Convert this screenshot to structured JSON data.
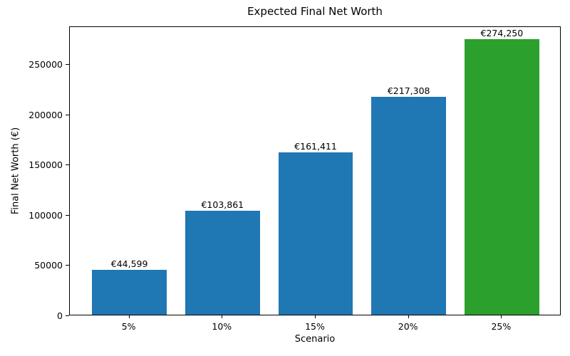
{
  "chart_data": {
    "type": "bar",
    "title": "Expected Final Net Worth",
    "xlabel": "Scenario",
    "ylabel": "Final Net Worth (€)",
    "categories": [
      "5%",
      "10%",
      "15%",
      "20%",
      "25%"
    ],
    "values": [
      44599,
      103861,
      161411,
      217308,
      274250
    ],
    "bar_labels": [
      "€44,599",
      "€103,861",
      "€161,411",
      "€217,308",
      "€274,250"
    ],
    "bar_colors": [
      "#1f77b4",
      "#1f77b4",
      "#1f77b4",
      "#1f77b4",
      "#2ca02c"
    ],
    "yticks": [
      0,
      50000,
      100000,
      150000,
      200000,
      250000
    ],
    "ytick_labels": [
      "0",
      "50000",
      "100000",
      "150000",
      "200000",
      "250000"
    ],
    "ylim": [
      0,
      288000
    ],
    "grid": false,
    "legend": null,
    "colors": {
      "bar_blue": "#1f77b4",
      "bar_green": "#2ca02c",
      "spine": "#000000",
      "text": "#000000",
      "background": "#ffffff"
    }
  }
}
